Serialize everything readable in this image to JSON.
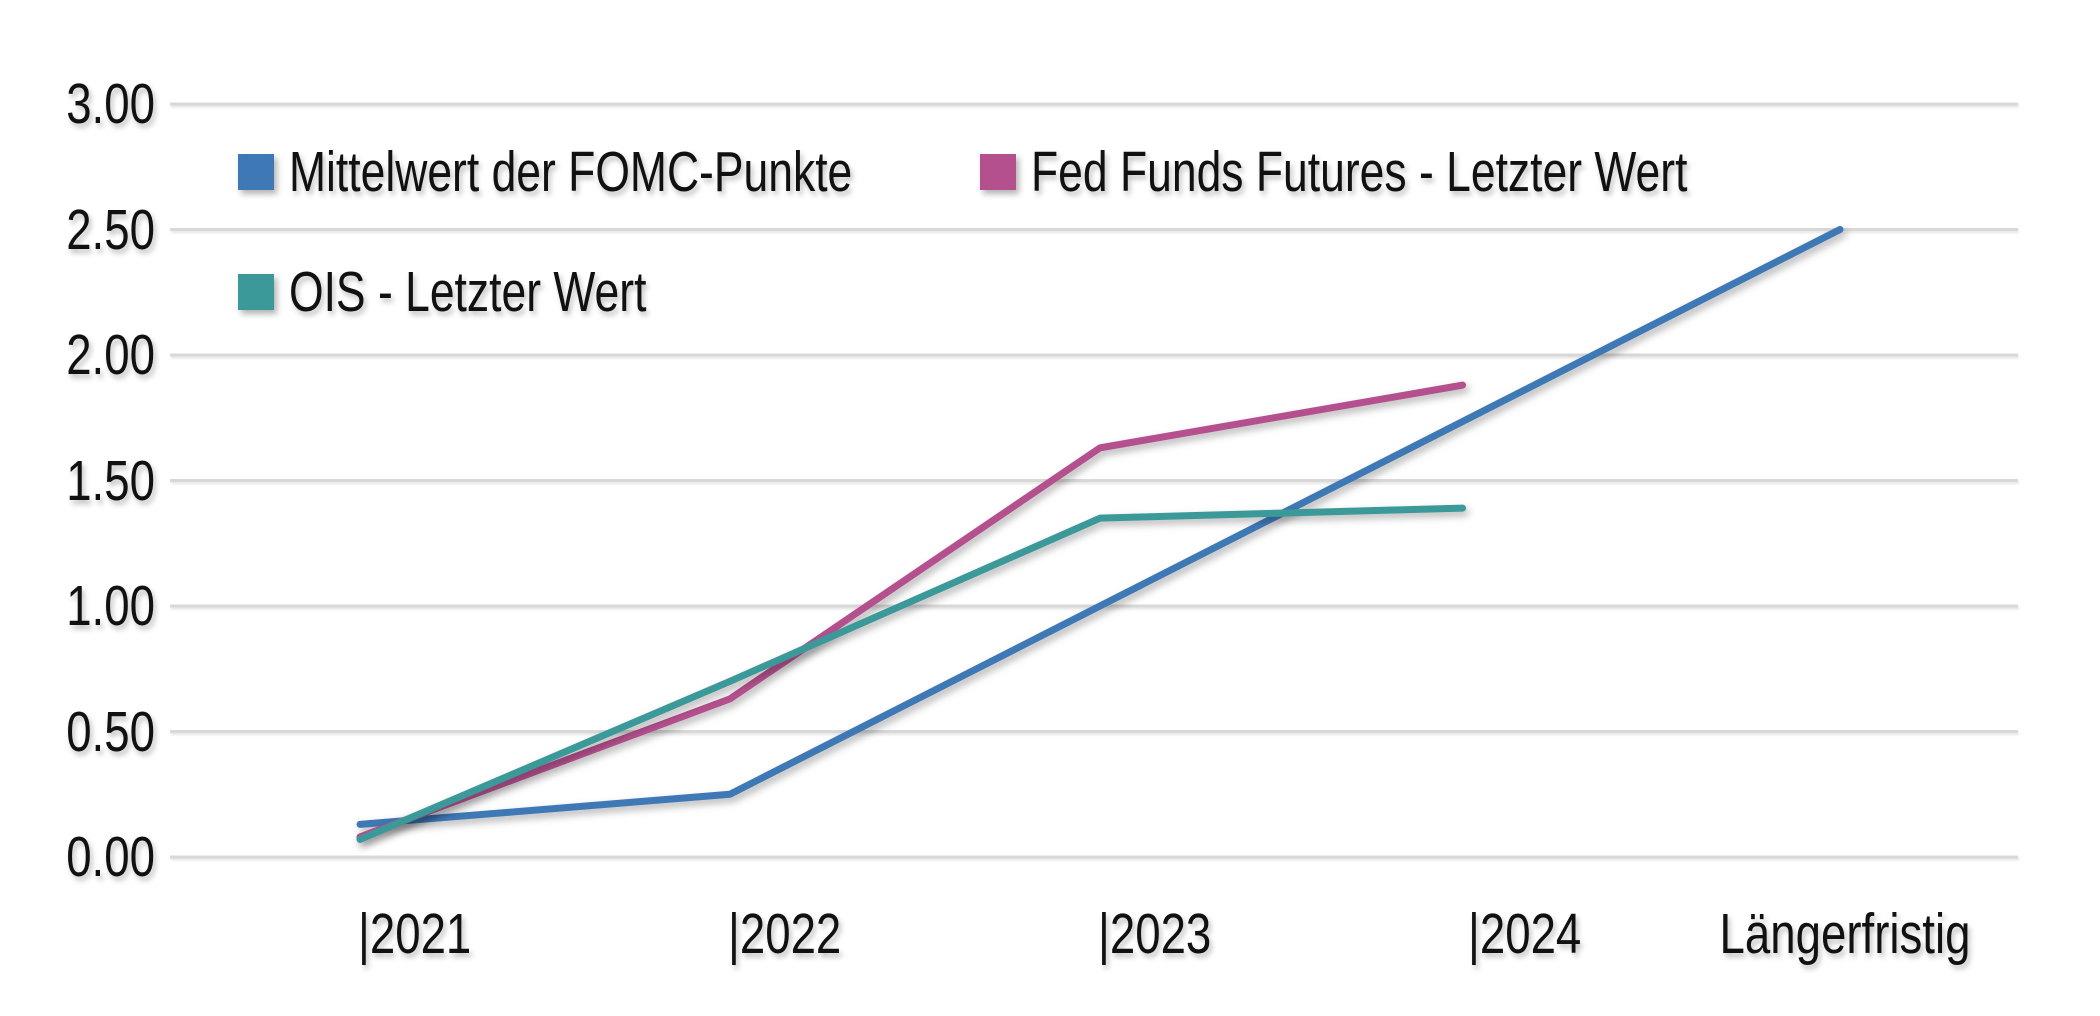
{
  "colors": {
    "background": "#FFFFFF",
    "grid": "#D8D8D8",
    "text": "#111111"
  },
  "chart_data": {
    "type": "line",
    "title": "",
    "xlabel": "",
    "ylabel": "",
    "ylim": [
      0,
      3
    ],
    "grid": "horizontal",
    "legend_position": "top-left-inside",
    "categories": [
      "2021",
      "2022",
      "2023",
      "2024",
      "Längerfristig"
    ],
    "x_tick_labels": [
      "|2021",
      "|2022",
      "|2023",
      "|2024",
      "Längerfristig"
    ],
    "y_tick_values": [
      0,
      0.5,
      1,
      1.5,
      2,
      2.5,
      3
    ],
    "y_tick_labels": [
      "0.00",
      "0.50",
      "1.00",
      "1.50",
      "2.00",
      "2.50",
      "3.00"
    ],
    "series": [
      {
        "name": "Mittelwert der FOMC-Punkte",
        "color": "#3E79B6",
        "x": [
          0,
          1,
          2,
          3,
          4
        ],
        "values": [
          0.13,
          0.25,
          1.0,
          1.75,
          2.5
        ]
      },
      {
        "name": "Fed Funds Futures - Letzter Wert",
        "color": "#B5508E",
        "x": [
          0,
          1,
          2,
          2.98
        ],
        "values": [
          0.08,
          0.63,
          1.63,
          1.88
        ]
      },
      {
        "name": "OIS - Letzter Wert",
        "color": "#3B9A99",
        "x": [
          0,
          1,
          2,
          2.98
        ],
        "values": [
          0.07,
          0.7,
          1.35,
          1.39
        ]
      }
    ]
  }
}
